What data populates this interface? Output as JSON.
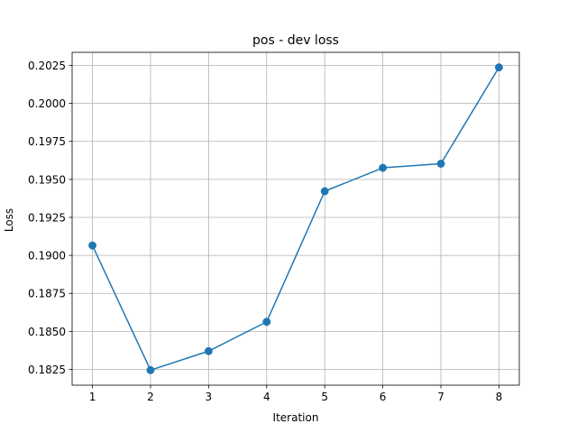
{
  "chart_data": {
    "type": "line",
    "title": "pos - dev loss",
    "xlabel": "Iteration",
    "ylabel": "Loss",
    "x": [
      1,
      2,
      3,
      4,
      5,
      6,
      7,
      8
    ],
    "series": [
      {
        "values": [
          0.19065,
          0.18245,
          0.1837,
          0.18563,
          0.19422,
          0.19576,
          0.19603,
          0.20237
        ],
        "color": "#1f77b4",
        "marker": "circle"
      }
    ],
    "xticks": [
      "1",
      "2",
      "3",
      "4",
      "5",
      "6",
      "7",
      "8"
    ],
    "yticks": [
      "0.1825",
      "0.1850",
      "0.1875",
      "0.1900",
      "0.1925",
      "0.1950",
      "0.1975",
      "0.2000",
      "0.2025"
    ],
    "xlim": [
      0.65,
      8.35
    ],
    "ylim": [
      0.18146,
      0.20336
    ],
    "grid": true,
    "legend": "none"
  }
}
